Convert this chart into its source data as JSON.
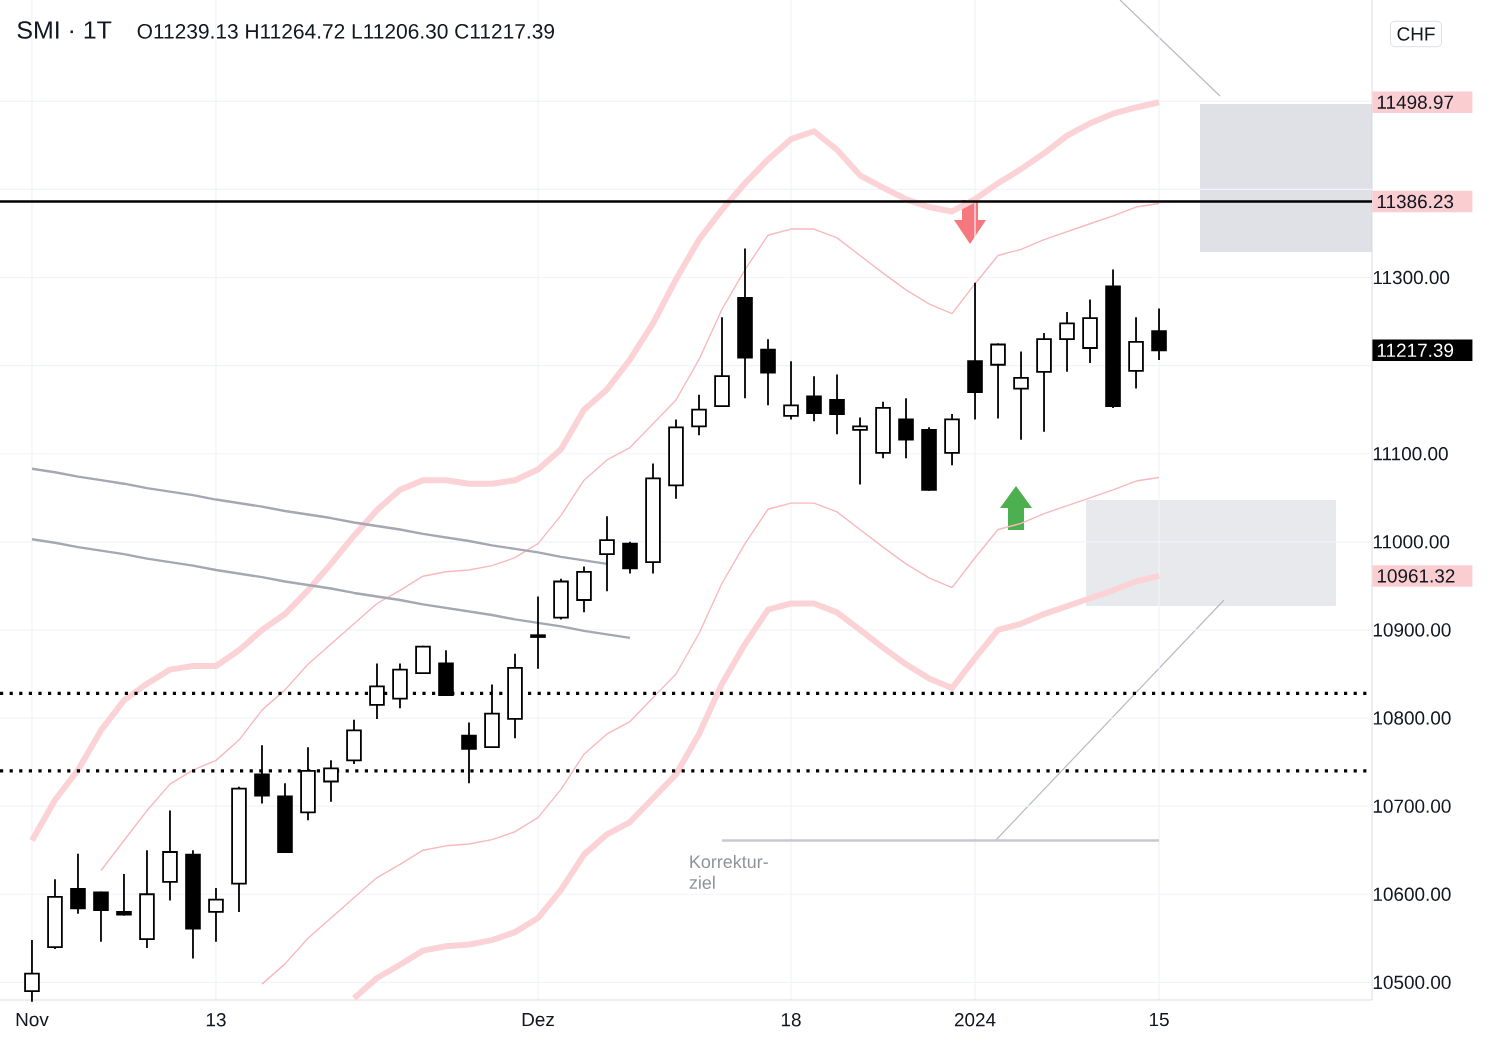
{
  "chart_data": {
    "type": "candlestick",
    "title": "SMI · 1T",
    "subtitle": "O11239.13 H11264.72 L11206.30 C11217.39",
    "ylabel": "CHF",
    "categories": [
      "Nov",
      null,
      null,
      null,
      null,
      null,
      null,
      null,
      "13",
      null,
      null,
      null,
      null,
      null,
      null,
      null,
      null,
      null,
      null,
      null,
      null,
      null,
      "Dez",
      null,
      null,
      null,
      null,
      null,
      null,
      null,
      null,
      null,
      null,
      "18",
      null,
      null,
      null,
      null,
      null,
      null,
      null,
      "2024",
      null,
      null,
      null,
      null,
      null,
      null,
      null,
      "15"
    ],
    "ylim": [
      10480,
      11615
    ],
    "yticks": [
      {
        "value": 10500,
        "label": "10500.00"
      },
      {
        "value": 10600,
        "label": "10600.00"
      },
      {
        "value": 10700,
        "label": "10700.00"
      },
      {
        "value": 10800,
        "label": "10800.00"
      },
      {
        "value": 10900,
        "label": "10900.00"
      },
      {
        "value": 10961.32,
        "label": "10961.32"
      },
      {
        "value": 11000,
        "label": "11000.00"
      },
      {
        "value": 11100,
        "label": "11100.00"
      },
      {
        "value": 11200,
        "label": null
      },
      {
        "value": 11217.39,
        "label": "11217.39"
      },
      {
        "value": 11300,
        "label": "11300.00"
      },
      {
        "value": 11386.23,
        "label": "11386.23"
      },
      {
        "value": 11400,
        "label": null
      },
      {
        "value": 11498.97,
        "label": "11498.97"
      },
      {
        "value": 11500,
        "label": null
      }
    ],
    "grid": true,
    "ohlc": [
      [
        10490,
        10548,
        10478,
        10510
      ],
      [
        10540,
        10617,
        10538,
        10597
      ],
      [
        10606,
        10646,
        10578,
        10584
      ],
      [
        10602,
        10603,
        10546,
        10582
      ],
      [
        10580,
        10623,
        10576,
        10577
      ],
      [
        10549,
        10650,
        10539,
        10600
      ],
      [
        10614,
        10695,
        10593,
        10648
      ],
      [
        10645,
        10650,
        10527,
        10561
      ],
      [
        10580,
        10607,
        10546,
        10594
      ],
      [
        10612,
        10722,
        10580,
        10720
      ],
      [
        10736,
        10769,
        10703,
        10712
      ],
      [
        10711,
        10726,
        10648,
        10648
      ],
      [
        10693,
        10767,
        10684,
        10740
      ],
      [
        10728,
        10752,
        10705,
        10743
      ],
      [
        10752,
        10798,
        10748,
        10786
      ],
      [
        10815,
        10862,
        10799,
        10836
      ],
      [
        10822,
        10862,
        10811,
        10855
      ],
      [
        10851,
        10882,
        10850,
        10881
      ],
      [
        10862,
        10877,
        10825,
        10826
      ],
      [
        10780,
        10795,
        10726,
        10765
      ],
      [
        10767,
        10838,
        10767,
        10805
      ],
      [
        10799,
        10873,
        10777,
        10857
      ],
      [
        10892,
        10938,
        10856,
        10894
      ],
      [
        10914,
        10958,
        10912,
        10955
      ],
      [
        10934,
        10972,
        10920,
        10966
      ],
      [
        10986,
        11029,
        10944,
        11002
      ],
      [
        10998,
        11000,
        10964,
        10970
      ],
      [
        10977,
        11089,
        10964,
        11072
      ],
      [
        11064,
        11139,
        11049,
        11130
      ],
      [
        11131,
        11167,
        11121,
        11150
      ],
      [
        11154,
        11255,
        11154,
        11188
      ],
      [
        11277,
        11333,
        11163,
        11209
      ],
      [
        11218,
        11230,
        11155,
        11192
      ],
      [
        11143,
        11205,
        11139,
        11155
      ],
      [
        11165,
        11188,
        11137,
        11146
      ],
      [
        11161,
        11190,
        11122,
        11145
      ],
      [
        11127,
        11141,
        11065,
        11131
      ],
      [
        11101,
        11159,
        11095,
        11152
      ],
      [
        11139,
        11163,
        11095,
        11116
      ],
      [
        11127,
        11130,
        11058,
        11059
      ],
      [
        11101,
        11145,
        11087,
        11139
      ],
      [
        11205,
        11294,
        11139,
        11170
      ],
      [
        11201,
        11225,
        11140,
        11224
      ],
      [
        11174,
        11216,
        11116,
        11186
      ],
      [
        11193,
        11237,
        11125,
        11230
      ],
      [
        11230,
        11261,
        11193,
        11248
      ],
      [
        11220,
        11275,
        11203,
        11254
      ],
      [
        11290,
        11309,
        11152,
        11154
      ],
      [
        11194,
        11255,
        11174,
        11227
      ],
      [
        11239.13,
        11264.72,
        11206.3,
        11217.39
      ]
    ],
    "series": [
      {
        "type": "line",
        "color": "#fbd3d6",
        "values": [
          10661,
          10707,
          10741,
          10786,
          10820,
          10839,
          10855,
          10859,
          10859,
          10877,
          10900,
          10918,
          10945,
          10975,
          11007,
          11036,
          11059,
          11070,
          11070,
          11066,
          11066,
          11070,
          11082,
          11105,
          11150,
          11173,
          11207,
          11248,
          11298,
          11343,
          11377,
          11407,
          11434,
          11457,
          11466,
          11445,
          11416,
          11402,
          11389,
          11380,
          11375,
          11389,
          11407,
          11423,
          11441,
          11461,
          11475,
          11486,
          11493,
          11498.97
        ]
      },
      {
        "type": "line",
        "color": "#f8b9bd",
        "values": [
          null,
          null,
          null,
          10627,
          10661,
          10695,
          10725,
          10741,
          10752,
          10775,
          10809,
          10832,
          10861,
          10884,
          10907,
          10930,
          10945,
          10961,
          10966,
          10968,
          10973,
          10982,
          10998,
          11030,
          11070,
          11093,
          11107,
          11134,
          11161,
          11207,
          11264,
          11309,
          11348,
          11355,
          11355,
          11345,
          11325,
          11305,
          11286,
          11270,
          11259,
          11293,
          11325,
          11332,
          11343,
          11352,
          11361,
          11370,
          11380,
          11384
        ]
      },
      {
        "type": "line",
        "color": "#f8b9bd",
        "values": [
          null,
          null,
          null,
          null,
          null,
          null,
          null,
          null,
          null,
          null,
          10498,
          10521,
          10550,
          10573,
          10596,
          10619,
          10634,
          10650,
          10655,
          10657,
          10662,
          10671,
          10687,
          10719,
          10759,
          10782,
          10796,
          10823,
          10850,
          10896,
          10953,
          10998,
          11037,
          11044,
          11044,
          11034,
          11014,
          10994,
          10975,
          10959,
          10948,
          10982,
          11014,
          11021,
          11032,
          11041,
          11050,
          11059,
          11069,
          11073
        ]
      },
      {
        "type": "line",
        "color": "#fbd3d6",
        "values": [
          null,
          null,
          null,
          null,
          null,
          null,
          null,
          null,
          null,
          null,
          null,
          null,
          null,
          null,
          10482,
          10505,
          10520,
          10536,
          10541,
          10543,
          10548,
          10557,
          10573,
          10605,
          10645,
          10668,
          10682,
          10709,
          10736,
          10782,
          10839,
          10884,
          10923,
          10930,
          10930,
          10920,
          10900,
          10880,
          10861,
          10845,
          10834,
          10868,
          10900,
          10907,
          10918,
          10927,
          10936,
          10945,
          10955,
          10961.32
        ]
      },
      {
        "type": "line",
        "color": "#a5a8b2",
        "values": [
          11083,
          11079,
          11074,
          11070,
          11066,
          11061,
          11057,
          11053,
          11048,
          11044,
          11040,
          11035,
          11031,
          11027,
          11022,
          11018,
          11014,
          11009,
          11005,
          11001,
          10996,
          10992,
          10988,
          10983,
          10979,
          10975,
          null,
          null,
          null,
          null,
          null,
          null,
          null,
          null,
          null,
          null,
          null,
          null,
          null,
          null,
          null,
          null,
          null,
          null,
          null,
          null,
          null,
          null,
          null,
          null
        ]
      },
      {
        "type": "line",
        "color": "#a5a8b2",
        "values": [
          11003,
          10999,
          10994,
          10990,
          10986,
          10981,
          10977,
          10973,
          10968,
          10964,
          10960,
          10955,
          10951,
          10947,
          10942,
          10938,
          10934,
          10929,
          10925,
          10921,
          10917,
          10912,
          10908,
          10904,
          10899,
          10895,
          10891,
          null,
          null,
          null,
          null,
          null,
          null,
          null,
          null,
          null,
          null,
          null,
          null,
          null,
          null,
          null,
          null,
          null,
          null,
          null,
          null,
          null,
          null,
          null
        ]
      },
      {
        "type": "line",
        "color": "#c7c9cf",
        "values": [
          null,
          null,
          null,
          null,
          null,
          null,
          null,
          null,
          null,
          null,
          null,
          null,
          null,
          null,
          null,
          null,
          null,
          null,
          null,
          null,
          null,
          null,
          null,
          null,
          null,
          null,
          null,
          null,
          null,
          null,
          10661,
          10661,
          10661,
          10661,
          10661,
          10661,
          10661,
          10661,
          10661,
          10661,
          10661,
          10661,
          10661,
          10661,
          10661,
          10661,
          10661,
          10661,
          10661,
          10661
        ]
      }
    ],
    "ref_lines": [
      {
        "axis": "y",
        "value": 11386.23,
        "color": "#000000",
        "line_style": "solid"
      },
      {
        "axis": "y",
        "value": 10828,
        "color": "#000000",
        "line_style": "dotted"
      },
      {
        "axis": "y",
        "value": 10740,
        "color": "#000000",
        "line_style": "dotted"
      }
    ],
    "annotations": [
      {
        "text": "Korrektur-ziel",
        "y": 10661
      }
    ]
  }
}
